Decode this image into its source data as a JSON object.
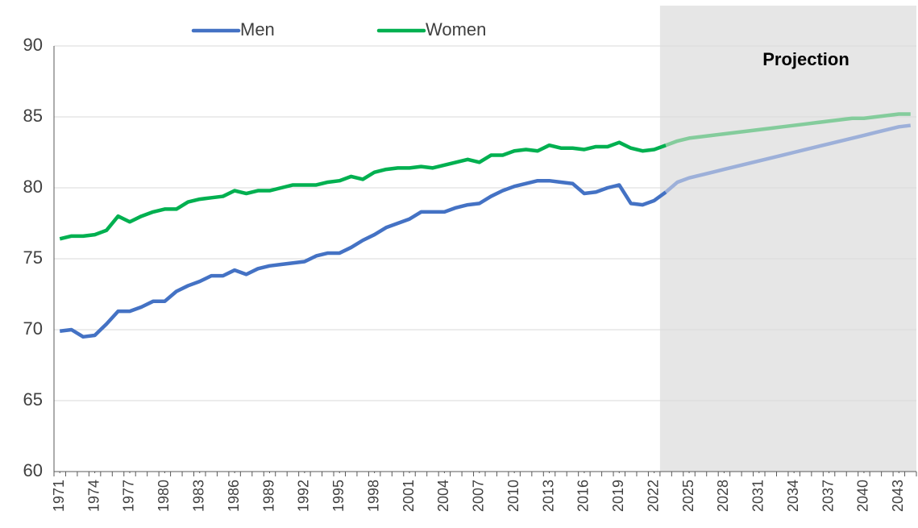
{
  "chart_data": {
    "type": "line",
    "x": [
      1971,
      1972,
      1973,
      1974,
      1975,
      1976,
      1977,
      1978,
      1979,
      1980,
      1981,
      1982,
      1983,
      1984,
      1985,
      1986,
      1987,
      1988,
      1989,
      1990,
      1991,
      1992,
      1993,
      1994,
      1995,
      1996,
      1997,
      1998,
      1999,
      2000,
      2001,
      2002,
      2003,
      2004,
      2005,
      2006,
      2007,
      2008,
      2009,
      2010,
      2011,
      2012,
      2013,
      2014,
      2015,
      2016,
      2017,
      2018,
      2019,
      2020,
      2021,
      2022,
      2023,
      2024,
      2025,
      2026,
      2027,
      2028,
      2029,
      2030,
      2031,
      2032,
      2033,
      2034,
      2035,
      2036,
      2037,
      2038,
      2039,
      2040,
      2041,
      2042,
      2043,
      2044
    ],
    "series": [
      {
        "name": "Men",
        "color": "#4472c4",
        "projection_color": "#9db0d9",
        "values": [
          69.9,
          70.0,
          69.5,
          69.6,
          70.4,
          71.3,
          71.3,
          71.6,
          72.0,
          72.0,
          72.7,
          73.1,
          73.4,
          73.8,
          73.8,
          74.2,
          73.9,
          74.3,
          74.5,
          74.6,
          74.7,
          74.8,
          75.2,
          75.4,
          75.4,
          75.8,
          76.3,
          76.7,
          77.2,
          77.5,
          77.8,
          78.3,
          78.3,
          78.3,
          78.6,
          78.8,
          78.9,
          79.4,
          79.8,
          80.1,
          80.3,
          80.5,
          80.5,
          80.4,
          80.3,
          79.6,
          79.7,
          80.0,
          80.2,
          78.9,
          78.8,
          79.1,
          79.7,
          80.4,
          80.7,
          80.9,
          81.1,
          81.3,
          81.5,
          81.7,
          81.9,
          82.1,
          82.3,
          82.5,
          82.7,
          82.9,
          83.1,
          83.3,
          83.5,
          83.7,
          83.9,
          84.1,
          84.3,
          84.4
        ]
      },
      {
        "name": "Women",
        "color": "#00b050",
        "projection_color": "#84cc9c",
        "values": [
          76.4,
          76.6,
          76.6,
          76.7,
          77.0,
          78.0,
          77.6,
          78.0,
          78.3,
          78.5,
          78.5,
          79.0,
          79.2,
          79.3,
          79.4,
          79.8,
          79.6,
          79.8,
          79.8,
          80.0,
          80.2,
          80.2,
          80.2,
          80.4,
          80.5,
          80.8,
          80.6,
          81.1,
          81.3,
          81.4,
          81.4,
          81.5,
          81.4,
          81.6,
          81.8,
          82.0,
          81.8,
          82.3,
          82.3,
          82.6,
          82.7,
          82.6,
          83.0,
          82.8,
          82.8,
          82.7,
          82.9,
          82.9,
          83.2,
          82.8,
          82.6,
          82.7,
          83.0,
          83.3,
          83.5,
          83.6,
          83.7,
          83.8,
          83.9,
          84.0,
          84.1,
          84.2,
          84.3,
          84.4,
          84.5,
          84.6,
          84.7,
          84.8,
          84.9,
          84.9,
          85.0,
          85.1,
          85.2,
          85.2
        ]
      }
    ],
    "projection": {
      "label": "Projection",
      "from": 2023,
      "color": "#e6e6e6"
    },
    "xlim": [
      1970.5,
      2044.5
    ],
    "xticks": [
      1971,
      1974,
      1977,
      1980,
      1983,
      1986,
      1989,
      1992,
      1995,
      1998,
      2001,
      2004,
      2007,
      2010,
      2013,
      2016,
      2019,
      2022,
      2025,
      2028,
      2031,
      2034,
      2037,
      2040,
      2043
    ],
    "ylim": [
      60,
      90
    ],
    "yticks": [
      60,
      65,
      70,
      75,
      80,
      85,
      90
    ],
    "grid": true,
    "legend": "top"
  }
}
